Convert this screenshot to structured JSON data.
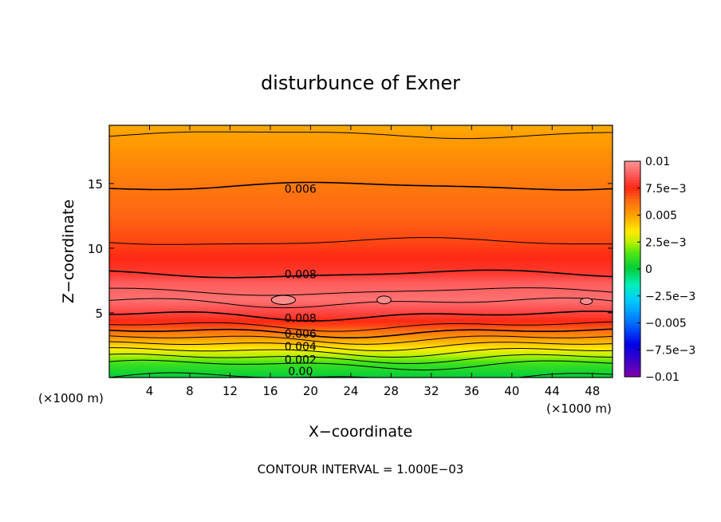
{
  "chart_data": {
    "type": "contour",
    "title": "disturbunce of Exner",
    "xlabel": "X−coordinate",
    "ylabel": "Z−coordinate",
    "x_unit": "(×1000 m)",
    "z_unit": "(×1000 m)",
    "xlim": [
      0,
      50
    ],
    "ylim": [
      0,
      19.5
    ],
    "x_ticks": [
      4,
      8,
      12,
      16,
      20,
      24,
      28,
      32,
      36,
      40,
      44,
      48
    ],
    "y_ticks": [
      5,
      10,
      15
    ],
    "contour_interval_note": "CONTOUR INTERVAL = 1.000E−03",
    "colorbar": {
      "range": [
        -0.01,
        0.01
      ],
      "labels": [
        "0.01",
        "7.5e−3",
        "0.005",
        "2.5e−3",
        "0",
        "−2.5e−3",
        "−0.005",
        "−7.5e−3",
        "−0.01"
      ]
    },
    "contour_labels": [
      {
        "text": "0.006",
        "x": 19,
        "z": 14.6
      },
      {
        "text": "0.008",
        "x": 19,
        "z": 8.0
      },
      {
        "text": "0.008",
        "x": 19,
        "z": 4.6
      },
      {
        "text": "0.006",
        "x": 19,
        "z": 3.4
      },
      {
        "text": "0.004",
        "x": 19,
        "z": 2.4
      },
      {
        "text": "0.002",
        "x": 19,
        "z": 1.4
      },
      {
        "text": "0.00",
        "x": 19,
        "z": 0.5
      }
    ],
    "profile": [
      {
        "z": 0.0,
        "value": 0.0
      },
      {
        "z": 0.5,
        "value": 0.0005
      },
      {
        "z": 1.0,
        "value": 0.001
      },
      {
        "z": 1.5,
        "value": 0.002
      },
      {
        "z": 2.0,
        "value": 0.003
      },
      {
        "z": 2.5,
        "value": 0.004
      },
      {
        "z": 3.0,
        "value": 0.005
      },
      {
        "z": 3.5,
        "value": 0.006
      },
      {
        "z": 4.0,
        "value": 0.007
      },
      {
        "z": 4.8,
        "value": 0.008
      },
      {
        "z": 6.0,
        "value": 0.0092
      },
      {
        "z": 7.3,
        "value": 0.0088
      },
      {
        "z": 8.0,
        "value": 0.008
      },
      {
        "z": 10.5,
        "value": 0.007
      },
      {
        "z": 12.5,
        "value": 0.0065
      },
      {
        "z": 14.8,
        "value": 0.006
      },
      {
        "z": 17.0,
        "value": 0.0055
      },
      {
        "z": 18.8,
        "value": 0.005
      },
      {
        "z": 19.5,
        "value": 0.0048
      }
    ]
  }
}
